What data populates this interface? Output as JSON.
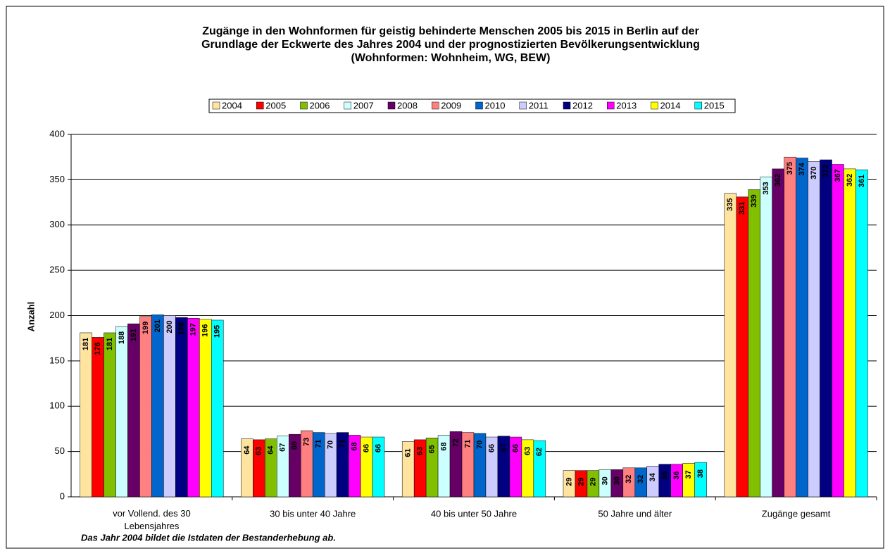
{
  "chart_data": {
    "type": "bar",
    "title": [
      "Zugänge in den Wohnformen für geistig behinderte Menschen 2005 bis 2015 in Berlin auf der",
      "Grundlage der Eckwerte des Jahres 2004 und der prognostizierten Bevölkerungsentwicklung",
      "(Wohnformen: Wohnheim, WG, BEW)"
    ],
    "y_label": "Anzahl",
    "note": "Das Jahr 2004 bildet die Istdaten der Bestanderhebung ab.",
    "categories": [
      "vor Vollend. des 30 Lebensjahres",
      "30 bis unter 40 Jahre",
      "40 bis unter 50 Jahre",
      "50 Jahre und älter",
      "Zugänge gesamt"
    ],
    "series": [
      {
        "name": "2004",
        "color": "#ffe4a0",
        "values": [
          181,
          64,
          61,
          29,
          335
        ]
      },
      {
        "name": "2005",
        "color": "#ff0000",
        "values": [
          176,
          63,
          63,
          29,
          331
        ]
      },
      {
        "name": "2006",
        "color": "#80c000",
        "values": [
          181,
          64,
          65,
          29,
          339
        ]
      },
      {
        "name": "2007",
        "color": "#ccffff",
        "values": [
          188,
          67,
          68,
          30,
          353
        ]
      },
      {
        "name": "2008",
        "color": "#660066",
        "values": [
          191,
          69,
          72,
          30,
          362
        ]
      },
      {
        "name": "2009",
        "color": "#ff8080",
        "values": [
          199,
          73,
          71,
          32,
          375
        ]
      },
      {
        "name": "2010",
        "color": "#0066cc",
        "values": [
          201,
          71,
          70,
          32,
          374
        ]
      },
      {
        "name": "2011",
        "color": "#ccccff",
        "values": [
          200,
          70,
          66,
          34,
          370
        ]
      },
      {
        "name": "2012",
        "color": "#000080",
        "values": [
          198,
          71,
          67,
          36,
          372
        ]
      },
      {
        "name": "2013",
        "color": "#ff00ff",
        "values": [
          197,
          68,
          66,
          36,
          367
        ]
      },
      {
        "name": "2014",
        "color": "#ffff00",
        "values": [
          196,
          66,
          63,
          37,
          362
        ]
      },
      {
        "name": "2015",
        "color": "#00ffff",
        "values": [
          195,
          66,
          62,
          38,
          361
        ]
      }
    ],
    "ylim": [
      0,
      400
    ],
    "yticks": [
      0,
      50,
      100,
      150,
      200,
      250,
      300,
      350,
      400
    ],
    "grid": true,
    "legend": "top"
  }
}
